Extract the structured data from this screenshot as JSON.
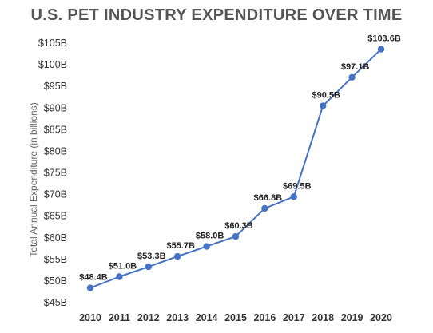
{
  "chart_data": {
    "type": "line",
    "title": "U.S. PET INDUSTRY EXPENDITURE OVER TIME",
    "ylabel": "Total Annual Expenditure (in billions)",
    "xlabel": "",
    "x": [
      "2010",
      "2011",
      "2012",
      "2013",
      "2014",
      "2015",
      "2016",
      "2017",
      "2018",
      "2019",
      "2020"
    ],
    "values": [
      48.4,
      51.0,
      53.3,
      55.7,
      58.0,
      60.3,
      66.8,
      69.5,
      90.5,
      97.1,
      103.6
    ],
    "data_labels": [
      "$48.4B",
      "$51.0B",
      "$53.3B",
      "$55.7B",
      "$58.0B",
      "$60.3B",
      "$66.8B",
      "$69.5B",
      "$90.5B",
      "$97.1B",
      "$103.6B"
    ],
    "yticks": [
      45,
      50,
      55,
      60,
      65,
      70,
      75,
      80,
      85,
      90,
      95,
      100,
      105
    ],
    "ytick_labels": [
      "$45B",
      "$50B",
      "$55B",
      "$60B",
      "$65B",
      "$70B",
      "$75B",
      "$80B",
      "$85B",
      "$90B",
      "$95B",
      "$100B",
      "$105B"
    ],
    "ylim": [
      45,
      105
    ],
    "grid": false,
    "legend": "none",
    "line_color": "#4472c4",
    "marker_color": "#4472c4"
  }
}
